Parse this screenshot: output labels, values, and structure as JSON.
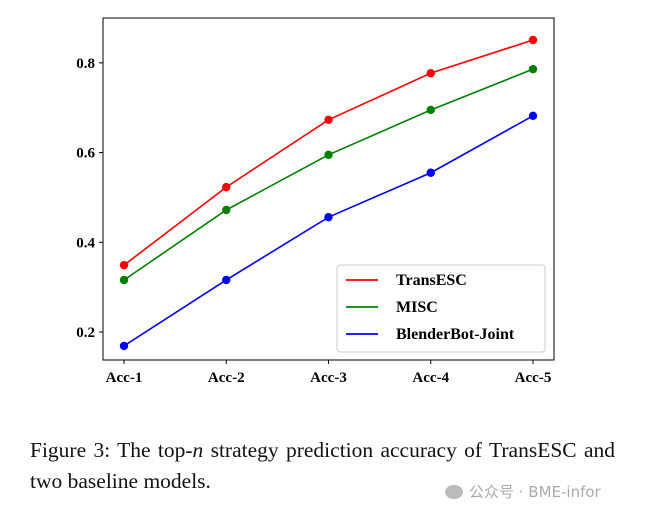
{
  "chart_data": {
    "type": "line",
    "categories": [
      "Acc-1",
      "Acc-2",
      "Acc-3",
      "Acc-4",
      "Acc-5"
    ],
    "series": [
      {
        "name": "TransESC",
        "color": "#ff0000",
        "values": [
          0.349,
          0.523,
          0.673,
          0.777,
          0.851
        ]
      },
      {
        "name": "MISC",
        "color": "#008000",
        "values": [
          0.316,
          0.472,
          0.595,
          0.695,
          0.786
        ]
      },
      {
        "name": "BlenderBot-Joint",
        "color": "#0000ff",
        "values": [
          0.169,
          0.316,
          0.456,
          0.555,
          0.682
        ]
      }
    ],
    "yticks": [
      0.2,
      0.4,
      0.6,
      0.8
    ],
    "ytick_labels": [
      "0.2",
      "0.4",
      "0.6",
      "0.8"
    ],
    "ylim": [
      0.1376,
      0.9
    ],
    "xlabel": "",
    "ylabel": "",
    "grid": false,
    "legend": "bottom-right"
  },
  "caption": {
    "prefix": "Figure 3:  The top-",
    "var": "n",
    "suffix": " strategy prediction accuracy of TransESC and two baseline models."
  },
  "watermark": "公众号 · BME-infor"
}
